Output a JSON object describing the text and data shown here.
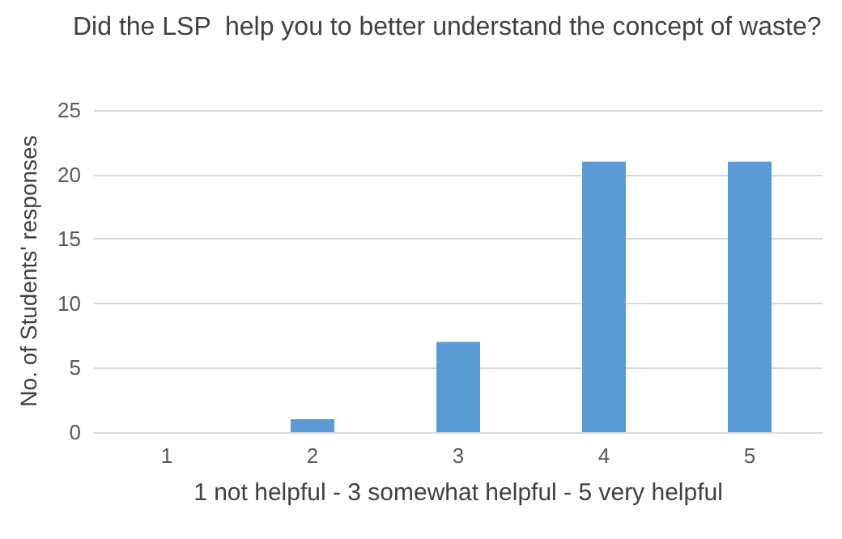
{
  "chart_data": {
    "type": "bar",
    "title": "Did the LSP  help you to better understand the concept of waste?",
    "xlabel": "1 not helpful - 3 somewhat helpful - 5 very helpful",
    "ylabel": "No. of Students' responses",
    "categories": [
      "1",
      "2",
      "3",
      "4",
      "5"
    ],
    "values": [
      0,
      1,
      7,
      21,
      21
    ],
    "color": "#5b9bd5",
    "ylim": [
      0,
      25
    ],
    "yticks": [
      0,
      5,
      10,
      15,
      20,
      25
    ],
    "grid": "y"
  }
}
